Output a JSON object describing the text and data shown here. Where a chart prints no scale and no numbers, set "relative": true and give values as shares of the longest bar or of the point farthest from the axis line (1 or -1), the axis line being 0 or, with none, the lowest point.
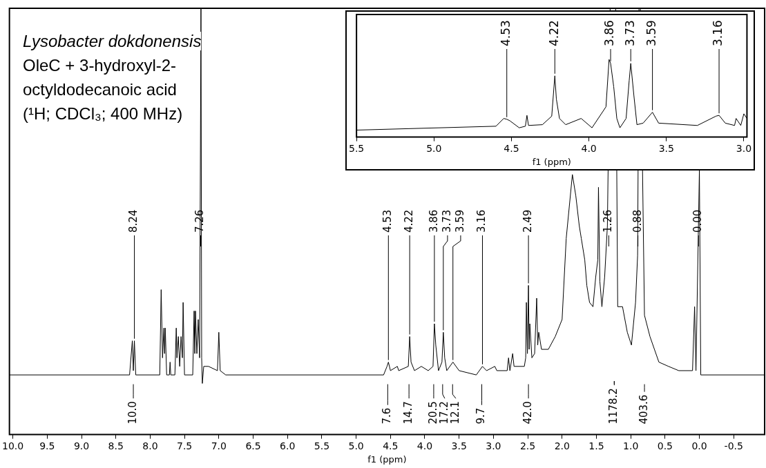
{
  "chart_data": [
    {
      "type": "line",
      "title": "Lysobacter dokdonensis",
      "subtitle": "OleC + 3-hydroxyl-2-octyldodecanoic acid",
      "xlabel": "f1 (ppm)",
      "relative": true,
      "grid": false,
      "legend": false,
      "xlim": [
        10.05,
        -0.95
      ],
      "xticks": [
        {
          "value": 10,
          "label": "10.0"
        },
        9.5,
        {
          "value": 9,
          "label": "9.0"
        },
        8.5,
        {
          "value": 8,
          "label": "8.0"
        },
        7.5,
        {
          "value": 7,
          "label": "7.0"
        },
        6.5,
        {
          "value": 6,
          "label": "6.0"
        },
        5.5,
        {
          "value": 5,
          "label": "5.0"
        },
        4.5,
        {
          "value": 4,
          "label": "4.0"
        },
        3.5,
        {
          "value": 3,
          "label": "3.0"
        },
        2.5,
        {
          "value": 2,
          "label": "2.0"
        },
        1.5,
        {
          "value": 1,
          "label": "1.0"
        },
        0.5,
        {
          "value": 0,
          "label": "0.0"
        },
        -0.5
      ],
      "series": [
        {
          "color": "#000000",
          "x": [
            10.05,
            8.3,
            8.26,
            8.245,
            8.23,
            8.21,
            7.86,
            7.84,
            7.82,
            7.8,
            7.79,
            7.78,
            7.76,
            7.72,
            7.71,
            7.7,
            7.64,
            7.62,
            7.61,
            7.59,
            7.57,
            7.55,
            7.53,
            7.52,
            7.5,
            7.38,
            7.36,
            7.35,
            7.34,
            7.32,
            7.3,
            7.28,
            7.26,
            7.25,
            7.24,
            7.22,
            7.15,
            7.02,
            7.0,
            6.98,
            6.9,
            4.6,
            4.55,
            4.53,
            4.5,
            4.4,
            4.38,
            4.24,
            4.22,
            4.2,
            4.15,
            4.05,
            3.95,
            3.88,
            3.86,
            3.84,
            3.8,
            3.75,
            3.73,
            3.71,
            3.68,
            3.59,
            3.5,
            3.25,
            3.16,
            3.1,
            2.98,
            2.95,
            2.8,
            2.78,
            2.76,
            2.72,
            2.7,
            2.55,
            2.53,
            2.52,
            2.505,
            2.49,
            2.48,
            2.47,
            2.44,
            2.4,
            2.37,
            2.355,
            2.34,
            2.3,
            2.2,
            2.1,
            2.0,
            1.94,
            1.85,
            1.8,
            1.75,
            1.72,
            1.67,
            1.64,
            1.6,
            1.55,
            1.51,
            1.48,
            1.47,
            1.45,
            1.42,
            1.38,
            1.34,
            1.3,
            1.26,
            1.22,
            1.19,
            1.12,
            1.05,
            0.99,
            0.93,
            0.9,
            0.88,
            0.86,
            0.8,
            0.72,
            0.59,
            0.45,
            0.3,
            0.1,
            0.07,
            0.05,
            0.0,
            -0.02,
            -0.95
          ],
          "values": [
            0.14,
            0.14,
            0.22,
            0.15,
            0.22,
            0.14,
            0.14,
            0.34,
            0.18,
            0.25,
            0.19,
            0.25,
            0.14,
            0.14,
            0.17,
            0.14,
            0.14,
            0.25,
            0.18,
            0.23,
            0.16,
            0.23,
            0.18,
            0.31,
            0.14,
            0.14,
            0.29,
            0.19,
            0.29,
            0.19,
            0.27,
            0.18,
            1,
            0.18,
            0.12,
            0.16,
            0.16,
            0.15,
            0.24,
            0.15,
            0.14,
            0.14,
            0.16,
            0.17,
            0.15,
            0.16,
            0.15,
            0.16,
            0.23,
            0.17,
            0.15,
            0.16,
            0.15,
            0.16,
            0.26,
            0.21,
            0.15,
            0.17,
            0.24,
            0.18,
            0.15,
            0.17,
            0.15,
            0.14,
            0.16,
            0.15,
            0.16,
            0.15,
            0.15,
            0.18,
            0.15,
            0.19,
            0.16,
            0.16,
            0.18,
            0.31,
            0.19,
            0.35,
            0.2,
            0.26,
            0.18,
            0.19,
            0.32,
            0.21,
            0.24,
            0.2,
            0.2,
            0.23,
            0.27,
            0.46,
            0.61,
            0.56,
            0.49,
            0.46,
            0.41,
            0.35,
            0.31,
            0.3,
            0.37,
            0.41,
            0.58,
            0.36,
            0.3,
            0.37,
            0.49,
            1,
            1,
            1,
            0.3,
            0.3,
            0.24,
            0.21,
            0.31,
            0.42,
            1,
            1,
            0.28,
            0.23,
            0.17,
            0.16,
            0.15,
            0.15,
            0.3,
            0.15,
            0.62,
            0.14,
            0.14
          ]
        }
      ],
      "annotations": [
        "(¹H; CDCl₃; 400 MHz)",
        {
          "text": "8.24",
          "x": 8.23,
          "y": 0.22
        },
        {
          "text": "7.26",
          "x": 7.265,
          "y": 0.49
        },
        {
          "text": "4.53",
          "x": 4.53,
          "y": 0.17
        },
        {
          "text": "4.22",
          "x": 4.22,
          "y": 0.23
        },
        {
          "text": "3.86",
          "x": 3.86,
          "y": 0.26
        },
        {
          "text": "3.73",
          "x": 3.73,
          "y": 0.24
        },
        {
          "text": "3.59",
          "x": 3.59,
          "y": 0.17
        },
        {
          "text": "3.16",
          "x": 3.16,
          "y": 0.16
        },
        {
          "text": "2.49",
          "x": 2.49,
          "y": 0.35
        },
        {
          "text": "1.26",
          "x": 1.32,
          "y": 0.49
        },
        {
          "text": "0.88",
          "x": 0.895,
          "y": 0.49
        },
        {
          "text": "0.00",
          "x": 0.013,
          "y": 0.49
        },
        {
          "text": "10.0",
          "x": 8.245
        },
        {
          "text": "7.6",
          "x": 4.54
        },
        {
          "text": "14.7",
          "x": 4.23
        },
        {
          "text": "20.5",
          "x": 3.87
        },
        {
          "text": "17.2",
          "x": 3.74
        },
        {
          "text": "12.1",
          "x": 3.595
        },
        {
          "text": "9.7",
          "x": 3.17
        },
        {
          "text": "42.0",
          "x": 2.49
        },
        {
          "text": "1178.2",
          "x": 1.24
        },
        {
          "text": "403.6",
          "x": 0.8
        }
      ]
    },
    {
      "type": "line",
      "xlabel": "f1 (ppm)",
      "relative": true,
      "grid": false,
      "legend": false,
      "xlim": [
        5.5,
        2.98
      ],
      "xticks": [
        5.5,
        {
          "value": 5,
          "label": "5.0"
        },
        4.5,
        {
          "value": 4,
          "label": "4.0"
        },
        3.5,
        {
          "value": 3,
          "label": "3.0"
        }
      ],
      "series": [
        {
          "color": "#000000",
          "x": [
            5.5,
            4.6,
            4.55,
            4.53,
            4.51,
            4.45,
            4.41,
            4.4,
            4.39,
            4.3,
            4.24,
            4.22,
            4.21,
            4.19,
            4.15,
            4.05,
            3.98,
            3.89,
            3.87,
            3.86,
            3.84,
            3.82,
            3.8,
            3.76,
            3.74,
            3.73,
            3.71,
            3.69,
            3.65,
            3.59,
            3.55,
            3.3,
            3.18,
            3.16,
            3.12,
            3.06,
            3.05,
            3.02,
            3.0,
            2.98
          ],
          "values": [
            0.09,
            0.14,
            0.24,
            0.23,
            0.21,
            0.12,
            0.14,
            0.28,
            0.15,
            0.16,
            0.27,
            0.79,
            0.49,
            0.24,
            0.16,
            0.24,
            0.12,
            0.39,
            1,
            0.95,
            0.65,
            0.24,
            0.12,
            0.24,
            0.73,
            0.95,
            0.54,
            0.16,
            0.18,
            0.32,
            0.18,
            0.15,
            0.27,
            0.28,
            0.18,
            0.15,
            0.24,
            0.15,
            0.3,
            0.24
          ]
        }
      ],
      "annotations": [
        {
          "text": "4.53",
          "x": 4.53,
          "y": 0.23
        },
        {
          "text": "4.22",
          "x": 4.22,
          "y": 0.79
        },
        {
          "text": "3.86",
          "x": 3.86,
          "y": 0.95
        },
        {
          "text": "3.73",
          "x": 3.73,
          "y": 0.95
        },
        {
          "text": "3.59",
          "x": 3.59,
          "y": 0.32
        },
        {
          "text": "3.16",
          "x": 3.16,
          "y": 0.28
        }
      ]
    }
  ]
}
